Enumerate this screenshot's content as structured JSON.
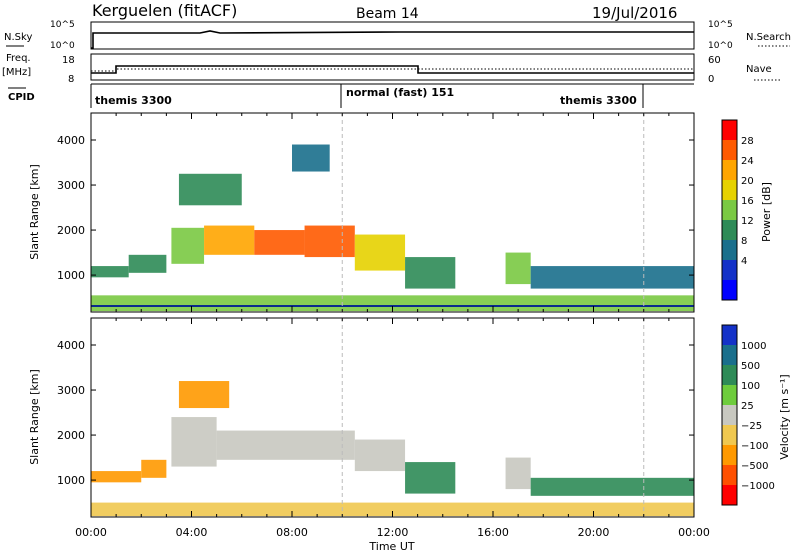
{
  "header": {
    "station": "Kerguelen (fitACF)",
    "beam": "Beam 14",
    "date": "19/Jul/2016"
  },
  "noise_panel": {
    "label": "N.Sky",
    "right_label": "N.Search",
    "left_ticks": [
      "10^5",
      "10^0"
    ],
    "right_ticks": [
      "10^5",
      "10^0"
    ]
  },
  "freq_panel": {
    "label_line1": "Freq.",
    "label_line2": "[MHz]",
    "left_ticks": [
      "18",
      "8"
    ],
    "right_ticks": [
      "60",
      "0"
    ],
    "right_label": "Nave"
  },
  "cpid_panel": {
    "label": "CPID",
    "modes": [
      {
        "name": "themis 3300",
        "start_hour": 0
      },
      {
        "name": "normal (fast) 151",
        "start_hour": 10
      },
      {
        "name": "themis 3300",
        "start_hour": 16.3
      }
    ]
  },
  "power_panel": {
    "ylabel": "Slant Range [km]",
    "colorbar_label": "Power [dB]",
    "colorbar_ticks": [
      "28",
      "24",
      "20",
      "16",
      "12",
      "8",
      "4"
    ],
    "colors": [
      "#ff0000",
      "#ff5a00",
      "#ffa500",
      "#e6d200",
      "#7ac943",
      "#2e8b57",
      "#1a6f8c",
      "#1432c8",
      "#0000ff"
    ]
  },
  "velocity_panel": {
    "ylabel": "Slant Range [km]",
    "colorbar_label": "Velocity [m s⁻¹]",
    "colorbar_ticks": [
      "1000",
      "500",
      "100",
      "25",
      "−25",
      "−100",
      "−500",
      "−1000"
    ],
    "colors": [
      "#1432c8",
      "#1a6f8c",
      "#2e8b57",
      "#6ecc3c",
      "#c8c8c0",
      "#f0c850",
      "#ff9900",
      "#ff5000",
      "#ff0000"
    ]
  },
  "axes": {
    "xlabel": "Time UT",
    "x_ticks": [
      "00:00",
      "04:00",
      "08:00",
      "12:00",
      "16:00",
      "20:00",
      "00:00"
    ],
    "y_ticks": [
      "4000",
      "3000",
      "2000",
      "1000"
    ]
  },
  "chart_data": {
    "type": "heatmap",
    "x_range_hours": [
      0,
      24
    ],
    "y_range_km": [
      180,
      4600
    ],
    "dashed_vertical_lines_hours": [
      10,
      22
    ],
    "power_regions": [
      {
        "start": 0.0,
        "end": 1.5,
        "low": 950,
        "high": 1200,
        "power": 10
      },
      {
        "start": 1.5,
        "end": 3.0,
        "low": 1050,
        "high": 1450,
        "power": 9
      },
      {
        "start": 3.2,
        "end": 4.5,
        "low": 1250,
        "high": 2050,
        "power": 14
      },
      {
        "start": 4.5,
        "end": 6.5,
        "low": 1450,
        "high": 2100,
        "power": 20
      },
      {
        "start": 6.5,
        "end": 8.5,
        "low": 1450,
        "high": 2000,
        "power": 24
      },
      {
        "start": 8.5,
        "end": 10.5,
        "low": 1400,
        "high": 2100,
        "power": 26
      },
      {
        "start": 10.5,
        "end": 12.5,
        "low": 1100,
        "high": 1900,
        "power": 18
      },
      {
        "start": 12.5,
        "end": 14.5,
        "low": 700,
        "high": 1400,
        "power": 10
      },
      {
        "start": 16.5,
        "end": 17.5,
        "low": 800,
        "high": 1500,
        "power": 12
      },
      {
        "start": 17.5,
        "end": 24.0,
        "low": 700,
        "high": 1200,
        "power": 6
      },
      {
        "start": 3.5,
        "end": 6.0,
        "low": 2550,
        "high": 3250,
        "power": 8
      },
      {
        "start": 8.0,
        "end": 9.5,
        "low": 3300,
        "high": 3900,
        "power": 6
      },
      {
        "start": 0.0,
        "end": 24.0,
        "low": 200,
        "high": 550,
        "power": 14
      }
    ],
    "velocity_regions": [
      {
        "start": 0.0,
        "end": 2.0,
        "low": 950,
        "high": 1200,
        "velocity": -100
      },
      {
        "start": 2.0,
        "end": 3.0,
        "low": 1050,
        "high": 1450,
        "velocity": -100
      },
      {
        "start": 3.2,
        "end": 5.0,
        "low": 1300,
        "high": 2400,
        "velocity": 0
      },
      {
        "start": 5.0,
        "end": 10.5,
        "low": 1450,
        "high": 2100,
        "velocity": 0
      },
      {
        "start": 10.5,
        "end": 12.5,
        "low": 1200,
        "high": 1900,
        "velocity": 0
      },
      {
        "start": 12.5,
        "end": 14.5,
        "low": 700,
        "high": 1400,
        "velocity": 100
      },
      {
        "start": 16.5,
        "end": 17.5,
        "low": 800,
        "high": 1500,
        "velocity": 0
      },
      {
        "start": 17.5,
        "end": 24.0,
        "low": 650,
        "high": 1050,
        "velocity": 100
      },
      {
        "start": 3.5,
        "end": 5.5,
        "low": 2600,
        "high": 3200,
        "velocity": -300
      },
      {
        "start": 0.0,
        "end": 24.0,
        "low": 200,
        "high": 500,
        "velocity": -50
      }
    ]
  }
}
